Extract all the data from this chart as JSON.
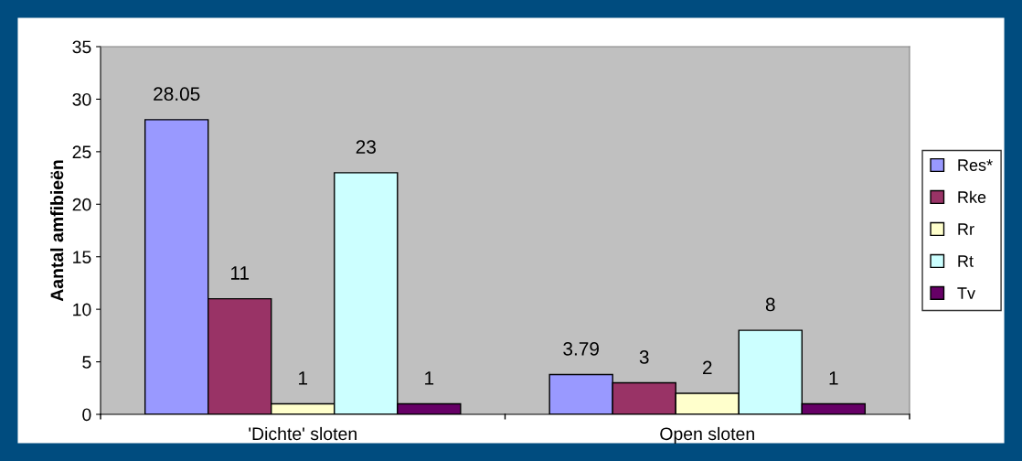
{
  "chart_data": {
    "type": "bar",
    "ylabel": "Aantal amfibieën",
    "categories": [
      "'Dichte' sloten",
      "Open sloten"
    ],
    "series": [
      {
        "name": "Res*",
        "color": "#9999ff",
        "values": [
          28.05,
          3.79
        ]
      },
      {
        "name": "Rke",
        "color": "#993366",
        "values": [
          11,
          3
        ]
      },
      {
        "name": "Rr",
        "color": "#ffffcc",
        "values": [
          1,
          2
        ]
      },
      {
        "name": "Rt",
        "color": "#ccffff",
        "values": [
          23,
          8
        ]
      },
      {
        "name": "Tv",
        "color": "#660066",
        "values": [
          1,
          1
        ]
      }
    ],
    "ylim": [
      0,
      35
    ],
    "yticks": [
      0,
      5,
      10,
      15,
      20,
      25,
      30,
      35
    ],
    "data_labels": true,
    "grid": false,
    "legend": "right"
  }
}
